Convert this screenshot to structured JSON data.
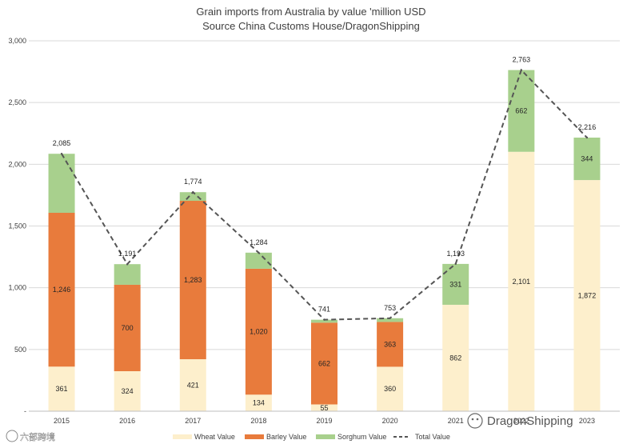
{
  "chart_data": {
    "type": "bar",
    "stacked": true,
    "title_lines": [
      "Grain imports from Australia by value 'million USD",
      "Source China Customs House/DragonShipping"
    ],
    "categories": [
      "2015",
      "2016",
      "2017",
      "2018",
      "2019",
      "2020",
      "2021",
      "2022",
      "2023"
    ],
    "series": [
      {
        "name": "Wheat Value",
        "color": "#fdefcc",
        "values": [
          361,
          324,
          421,
          134,
          55,
          360,
          862,
          2101,
          1872
        ]
      },
      {
        "name": "Barley Value",
        "color": "#e87b3c",
        "values": [
          1246,
          700,
          1283,
          1020,
          662,
          363,
          null,
          null,
          null
        ]
      },
      {
        "name": "Sorghum Value",
        "color": "#a8d08d",
        "values": [
          478,
          167,
          70,
          130,
          24,
          30,
          331,
          662,
          344
        ]
      }
    ],
    "segment_labels": {
      "Wheat Value": [
        "361",
        "324",
        "421",
        "134",
        "55",
        "360",
        "862",
        "2,101",
        "1,872"
      ],
      "Barley Value": [
        "1,246",
        "700",
        "1,283",
        "1,020",
        "662",
        "363",
        "",
        "",
        ""
      ],
      "Sorghum Value": [
        "",
        "",
        "",
        "",
        "",
        "",
        "331",
        "662",
        "344"
      ]
    },
    "total_series": {
      "name": "Total Value",
      "color": "#555555",
      "style": "dashed",
      "values": [
        2085,
        1191,
        1774,
        1284,
        741,
        753,
        1193,
        2763,
        2216
      ],
      "labels": [
        "2,085",
        "1,191",
        "1,774",
        "1,284",
        "741",
        "753",
        "1,193",
        "2,763",
        "2,216"
      ]
    },
    "y_ticks": [
      0,
      500,
      1000,
      1500,
      2000,
      2500,
      3000
    ],
    "y_tick_labels": [
      "-",
      "500",
      "1,000",
      "1,500",
      "2,000",
      "2,500",
      "3,000"
    ],
    "ylim": [
      0,
      3000
    ],
    "legend_position": "bottom",
    "gridlines": true
  },
  "watermarks": {
    "right": "DragonShipping",
    "left": "六部跨境"
  },
  "colors": {
    "grid": "#d9d9d9",
    "axis_text": "#404040"
  }
}
